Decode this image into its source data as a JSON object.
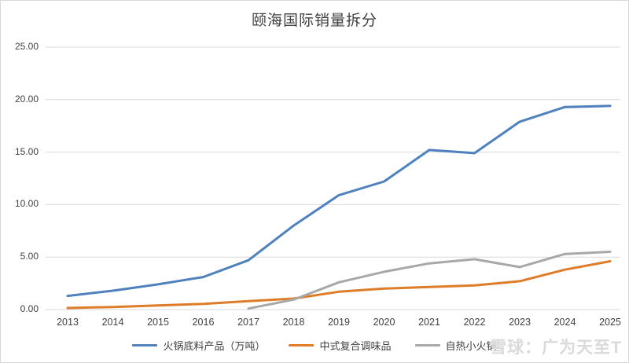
{
  "title": "颐海国际销量拆分",
  "watermark": "雪球：广为天至T",
  "colors": {
    "grid": "#d9d9d9",
    "axis_text": "#404040",
    "title_text": "#3f3f3f",
    "border": "#d9d9d9",
    "series_blue": "#4e81bd",
    "series_orange": "#de7c28",
    "series_gray": "#a8a8a8"
  },
  "chart_data": {
    "type": "line",
    "title": "颐海国际销量拆分",
    "categories": [
      "2013",
      "2014",
      "2015",
      "2016",
      "2017",
      "2018",
      "2019",
      "2020",
      "2021",
      "2022",
      "2023",
      "2024",
      "2025"
    ],
    "series": [
      {
        "name": "火锅底料产品（万吨）",
        "color": "#4e81bd",
        "values": [
          1.3,
          1.8,
          2.4,
          3.1,
          4.7,
          8.0,
          10.9,
          12.2,
          15.2,
          14.9,
          17.9,
          19.3,
          19.4
        ]
      },
      {
        "name": "中式复合调味品",
        "color": "#de7c28",
        "values": [
          0.15,
          0.25,
          0.4,
          0.55,
          0.8,
          1.05,
          1.7,
          2.0,
          2.15,
          2.3,
          2.7,
          3.8,
          4.6
        ]
      },
      {
        "name": "自热小火锅",
        "color": "#a8a8a8",
        "values": [
          null,
          null,
          null,
          null,
          0.1,
          0.95,
          2.6,
          3.6,
          4.4,
          4.8,
          4.05,
          5.3,
          5.5
        ]
      }
    ],
    "xlabel": "",
    "ylabel": "",
    "ylim": [
      0,
      25
    ],
    "yticks": [
      {
        "value": 0,
        "label": "0.00"
      },
      {
        "value": 5,
        "label": "5.00"
      },
      {
        "value": 10,
        "label": "10.00"
      },
      {
        "value": 15,
        "label": "15.00"
      },
      {
        "value": 20,
        "label": "20.00"
      },
      {
        "value": 25,
        "label": "25.00"
      }
    ],
    "grid": "horizontal",
    "legend_position": "bottom"
  }
}
